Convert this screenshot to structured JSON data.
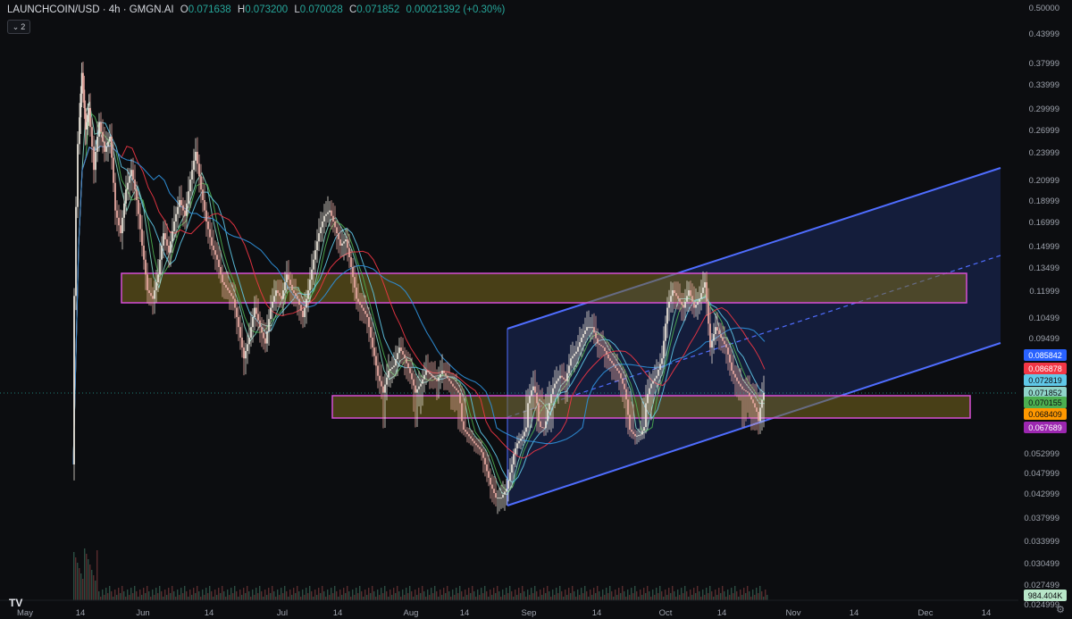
{
  "header": {
    "symbol": "LAUNCHCOIN/USD · 4h · GMGN.AI",
    "open_label": "O",
    "open": "0.071638",
    "high_label": "H",
    "high": "0.073200",
    "low_label": "L",
    "low": "0.070028",
    "close_label": "C",
    "close": "0.071852",
    "change": "0.00021392 (+0.30%)",
    "indicator_count": "2"
  },
  "price_axis": [
    "0.50000",
    "0.43999",
    "0.37999",
    "0.33999",
    "0.29999",
    "0.26999",
    "0.23999",
    "0.20999",
    "0.18999",
    "0.16999",
    "0.14999",
    "0.13499",
    "0.11999",
    "0.10499",
    "0.09499",
    "0.052999",
    "0.047999",
    "0.042999",
    "0.037999",
    "0.033999",
    "0.030499",
    "0.027499",
    "0.024999"
  ],
  "price_badges": [
    {
      "value": "0.086878",
      "color": "#f23645",
      "text_color": "#ffffff"
    },
    {
      "value": "0.085842",
      "color": "#2962ff",
      "text_color": "#ffffff"
    },
    {
      "value": "0.072819",
      "color": "#5fc8e8",
      "text_color": "#0c0d10"
    },
    {
      "value": "0.071852",
      "color": "#8fd4c9",
      "text_color": "#0c0d10"
    },
    {
      "value": "0.070155",
      "color": "#4caf50",
      "text_color": "#0c0d10"
    },
    {
      "value": "0.068409",
      "color": "#ff9800",
      "text_color": "#0c0d10"
    },
    {
      "value": "0.067689",
      "color": "#9c27b0",
      "text_color": "#ffffff"
    },
    {
      "value": "984.404K",
      "color": "#b8e6c8",
      "text_color": "#0c0d10"
    }
  ],
  "time_axis": [
    "May",
    "14",
    "Jun",
    "14",
    "Jul",
    "14",
    "Aug",
    "14",
    "Sep",
    "14",
    "Oct",
    "14",
    "Nov",
    "14",
    "Dec",
    "14"
  ],
  "colors": {
    "background": "#0c0d10",
    "up": "#26a69a",
    "down": "#ef5350",
    "candle": "#e8c9c0",
    "zone_fill": "#7a6a1e",
    "zone_border": "#d64fd6",
    "channel": "#4f6dff",
    "channel_fill": "#1c2c5e"
  },
  "icons": {
    "logo": "tradingview-logo-icon",
    "settings": "gear-icon",
    "toggle": "chevron-down-icon"
  },
  "logo_text": "TV"
}
